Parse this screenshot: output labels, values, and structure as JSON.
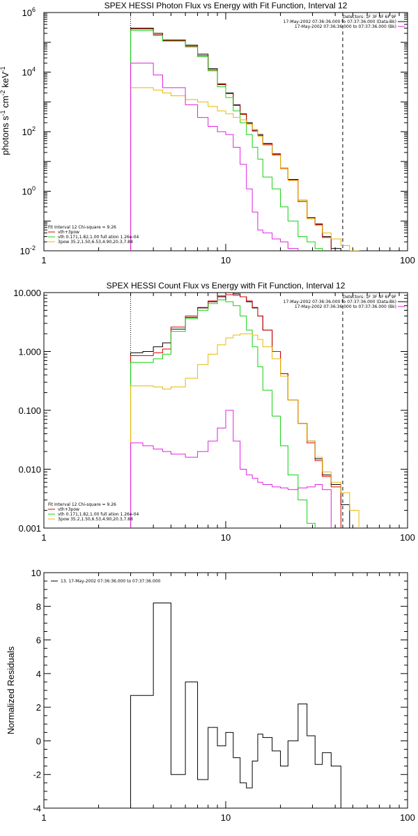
{
  "colors": {
    "black": "#000000",
    "red": "#e00000",
    "green": "#10d010",
    "yellow": "#e8b800",
    "magenta": "#e020e0"
  },
  "chart_data": [
    {
      "type": "line",
      "title": "SPEX HESSI Photon Flux vs Energy with Fit Function, Interval 12",
      "ylabel_main": "photons s",
      "ylabel_sup1": "-1",
      "ylabel_mid": " cm",
      "ylabel_sup2": "-2",
      "ylabel_end": " keV",
      "ylabel_sup3": "-1",
      "xscale": "log",
      "yscale": "log",
      "xlim": [
        1,
        100
      ],
      "ylim": [
        0.01,
        1000000
      ],
      "xticks": [
        "1",
        "10",
        "100"
      ],
      "yticks": [
        {
          "v": 1000000,
          "b": "10",
          "e": "6"
        },
        {
          "v": 10000,
          "b": "10",
          "e": "4"
        },
        {
          "v": 100,
          "b": "10",
          "e": "2"
        },
        {
          "v": 1,
          "b": "10",
          "e": "0"
        },
        {
          "v": 0.01,
          "b": "10",
          "e": "-2"
        }
      ],
      "vlines": [
        {
          "x": 3.0,
          "style": "dotted"
        },
        {
          "x": 44.0,
          "style": "dashed"
        }
      ],
      "legend_top": [
        "Detectors: 1F 3F 4F 6F 9F",
        "17-May-2002 07:36:36.000 to 07:37:36.000 (Data-Bk)",
        "17-May-2002 07:36:36.000 to 07:37:36.000 (Bk)"
      ],
      "legend_top_colors": [
        "#000000",
        "#000000",
        "#e020e0"
      ],
      "legend_bottom": [
        "Fit Interval 12    Chi-square = 9.26",
        "vth+3pow",
        "vth 0.171,1.82,1.00  full ation 1.26e-04",
        "3pow 35.2,1.50,6.53,4.90,20.3,7.88"
      ],
      "legend_bottom_colors": [
        "",
        "#e00000",
        "#10d010",
        "#e8b800"
      ],
      "edges": [
        3.0,
        3.5,
        4.0,
        4.5,
        5.0,
        6.0,
        7.0,
        8.0,
        9.0,
        10.0,
        11.0,
        12.0,
        13.0,
        14.0,
        15.0,
        16.0,
        18.0,
        20.0,
        22.0,
        25.0,
        28.0,
        31.0,
        34.0,
        38.0,
        43.0,
        48.0,
        54.0
      ],
      "series": [
        {
          "color": "#000000",
          "width": 1,
          "values": [
            300000,
            300000,
            200000,
            120000,
            120000,
            80000,
            40000,
            13000,
            4000,
            2000,
            800,
            400,
            200,
            110,
            80,
            40,
            18,
            6,
            2.5,
            0.5,
            0.13,
            0.08,
            0.03,
            0.012,
            0.01,
            0.0,
            0.0
          ]
        },
        {
          "color": "#e00000",
          "width": 1,
          "values": [
            280000,
            280000,
            180000,
            115000,
            115000,
            75000,
            36000,
            12000,
            3800,
            1900,
            760,
            380,
            190,
            105,
            75,
            38,
            17,
            5.8,
            2.4,
            0.45,
            0.12,
            0.075,
            0.028,
            0.0,
            0.0,
            0.0,
            0.0
          ]
        },
        {
          "color": "#10d010",
          "width": 1,
          "values": [
            250000,
            250000,
            170000,
            110000,
            110000,
            70000,
            33000,
            11000,
            3200,
            1400,
            500,
            200,
            80,
            30,
            12,
            3,
            1.2,
            0.3,
            0.1,
            0.03,
            0.02,
            0.012,
            0.0,
            0.0,
            0.0,
            0.0,
            0.0
          ]
        },
        {
          "color": "#e8b800",
          "width": 1,
          "values": [
            3000,
            3000,
            2500,
            2000,
            1600,
            1200,
            1000,
            700,
            500,
            400,
            300,
            250,
            180,
            120,
            70,
            35,
            16,
            6,
            2.3,
            0.5,
            0.12,
            0.07,
            0.04,
            0.025,
            0.015,
            0.01,
            0.0
          ]
        },
        {
          "color": "#e020e0",
          "width": 1,
          "values": [
            20000,
            20000,
            8000,
            3000,
            3000,
            800,
            300,
            150,
            100,
            80,
            30,
            8,
            1.2,
            0.2,
            0.05,
            0.04,
            0.025,
            0.02,
            0.012,
            0.0,
            0.0,
            0.0,
            0.0,
            0.0,
            0.0,
            0.0,
            0.0
          ]
        }
      ]
    },
    {
      "type": "line",
      "title": "SPEX HESSI Count Flux vs Energy with Fit Function, Interval 12",
      "xscale": "log",
      "yscale": "log",
      "xlim": [
        1,
        100
      ],
      "ylim": [
        0.001,
        10.0
      ],
      "xticks": [
        "1",
        "10",
        "100"
      ],
      "yticks": [
        {
          "v": 10,
          "t": "10.000"
        },
        {
          "v": 1,
          "t": "1.000"
        },
        {
          "v": 0.1,
          "t": "0.100"
        },
        {
          "v": 0.01,
          "t": "0.010"
        },
        {
          "v": 0.001,
          "t": "0.001"
        }
      ],
      "vlines": [
        {
          "x": 3.0,
          "style": "dotted"
        },
        {
          "x": 44.0,
          "style": "dashed"
        }
      ],
      "legend_top": [
        "Detectors: 1F 3F 4F 6F 9F",
        "17-May-2002 07:36:36.000 to 07:37:36.000 (Data-Bk)",
        "17-May-2002 07:36:36.000 to 07:37:36.000 (Bk)"
      ],
      "legend_top_colors": [
        "#000000",
        "#000000",
        "#e020e0"
      ],
      "legend_bottom": [
        "Fit Interval 12    Chi-square = 9.26",
        "vth+3pow",
        "vth 0.171,1.82,1.00  full ation 1.26e-04",
        "3pow 35.2,1.50,6.53,4.90,20.3,7.88"
      ],
      "legend_bottom_colors": [
        "",
        "#e00000",
        "#10d010",
        "#e8b800"
      ],
      "edges": [
        3.0,
        3.5,
        4.0,
        4.5,
        5.0,
        6.0,
        7.0,
        8.0,
        9.0,
        10.0,
        11.0,
        12.0,
        13.0,
        14.0,
        15.0,
        16.0,
        18.0,
        20.0,
        22.0,
        25.0,
        28.0,
        31.0,
        34.0,
        38.0,
        43.0,
        48.0,
        54.0
      ],
      "series": [
        {
          "color": "#000000",
          "width": 1,
          "values": [
            0.95,
            1.0,
            1.2,
            1.4,
            2.4,
            3.8,
            5.5,
            7.0,
            8.5,
            10.0,
            9.5,
            8.5,
            7.0,
            5.5,
            4.0,
            2.3,
            1.0,
            0.42,
            0.15,
            0.06,
            0.03,
            0.015,
            0.008,
            0.0055,
            0.0025,
            0.0,
            0.0
          ]
        },
        {
          "color": "#e00000",
          "width": 1,
          "values": [
            0.85,
            0.85,
            0.95,
            1.1,
            2.6,
            4.0,
            5.6,
            7.2,
            8.8,
            9.2,
            9.0,
            8.5,
            7.2,
            5.6,
            4.0,
            2.3,
            1.0,
            0.42,
            0.15,
            0.06,
            0.028,
            0.014,
            0.0075,
            0.005,
            0.0,
            0.0,
            0.0
          ]
        },
        {
          "color": "#10d010",
          "width": 1,
          "values": [
            0.65,
            0.65,
            0.75,
            0.9,
            2.2,
            3.6,
            5.0,
            6.5,
            7.5,
            7.0,
            6.0,
            4.0,
            2.3,
            1.2,
            0.55,
            0.22,
            0.08,
            0.025,
            0.008,
            0.003,
            0.0012,
            0.0,
            0.0,
            0.0,
            0.0,
            0.0,
            0.0
          ]
        },
        {
          "color": "#e8b800",
          "width": 1,
          "values": [
            0.26,
            0.26,
            0.25,
            0.23,
            0.25,
            0.35,
            0.6,
            0.9,
            1.3,
            1.7,
            1.9,
            2.0,
            2.0,
            1.9,
            1.6,
            1.2,
            0.75,
            0.38,
            0.15,
            0.06,
            0.03,
            0.016,
            0.009,
            0.006,
            0.004,
            0.002,
            0.001
          ]
        },
        {
          "color": "#e020e0",
          "width": 1,
          "values": [
            0.028,
            0.025,
            0.022,
            0.02,
            0.018,
            0.016,
            0.02,
            0.03,
            0.05,
            0.1,
            0.03,
            0.01,
            0.008,
            0.007,
            0.006,
            0.0055,
            0.005,
            0.0048,
            0.0045,
            0.0048,
            0.005,
            0.0055,
            0.0045,
            0.0,
            0.0,
            0.0,
            0.0
          ]
        }
      ]
    },
    {
      "type": "line",
      "title": "",
      "ylabel": "Normalized Residuals",
      "xscale": "log",
      "yscale": "linear",
      "xlim": [
        1,
        100
      ],
      "ylim": [
        -4,
        10
      ],
      "xticks": [
        "1",
        "10",
        "100"
      ],
      "yticks": [
        {
          "v": 10,
          "t": "10"
        },
        {
          "v": 8,
          "t": "8"
        },
        {
          "v": 6,
          "t": "6"
        },
        {
          "v": 4,
          "t": "4"
        },
        {
          "v": 2,
          "t": "2"
        },
        {
          "v": 0,
          "t": "0"
        },
        {
          "v": -2,
          "t": "-2"
        },
        {
          "v": -4,
          "t": "-4"
        }
      ],
      "legend_top": [
        "13. 17-May-2002 07:36:36.000 to 07:37:36.000"
      ],
      "edges": [
        3.0,
        4.0,
        5.0,
        6.0,
        7.0,
        8.0,
        9.0,
        10.0,
        11.0,
        12.0,
        13.0,
        14.0,
        15.0,
        16.0,
        18.0,
        20.0,
        22.0,
        25.0,
        28.0,
        31.0,
        34.0,
        38.0,
        43.0,
        48.0
      ],
      "series": [
        {
          "color": "#000000",
          "width": 1,
          "values": [
            2.7,
            8.2,
            -2.0,
            3.5,
            -2.3,
            0.8,
            -0.3,
            0.5,
            -1.0,
            -2.5,
            -2.8,
            -1.2,
            0.4,
            0.2,
            -0.6,
            -1.5,
            0.0,
            2.2,
            0.3,
            -1.4,
            -0.7,
            -1.5,
            -4.0
          ]
        }
      ]
    }
  ]
}
